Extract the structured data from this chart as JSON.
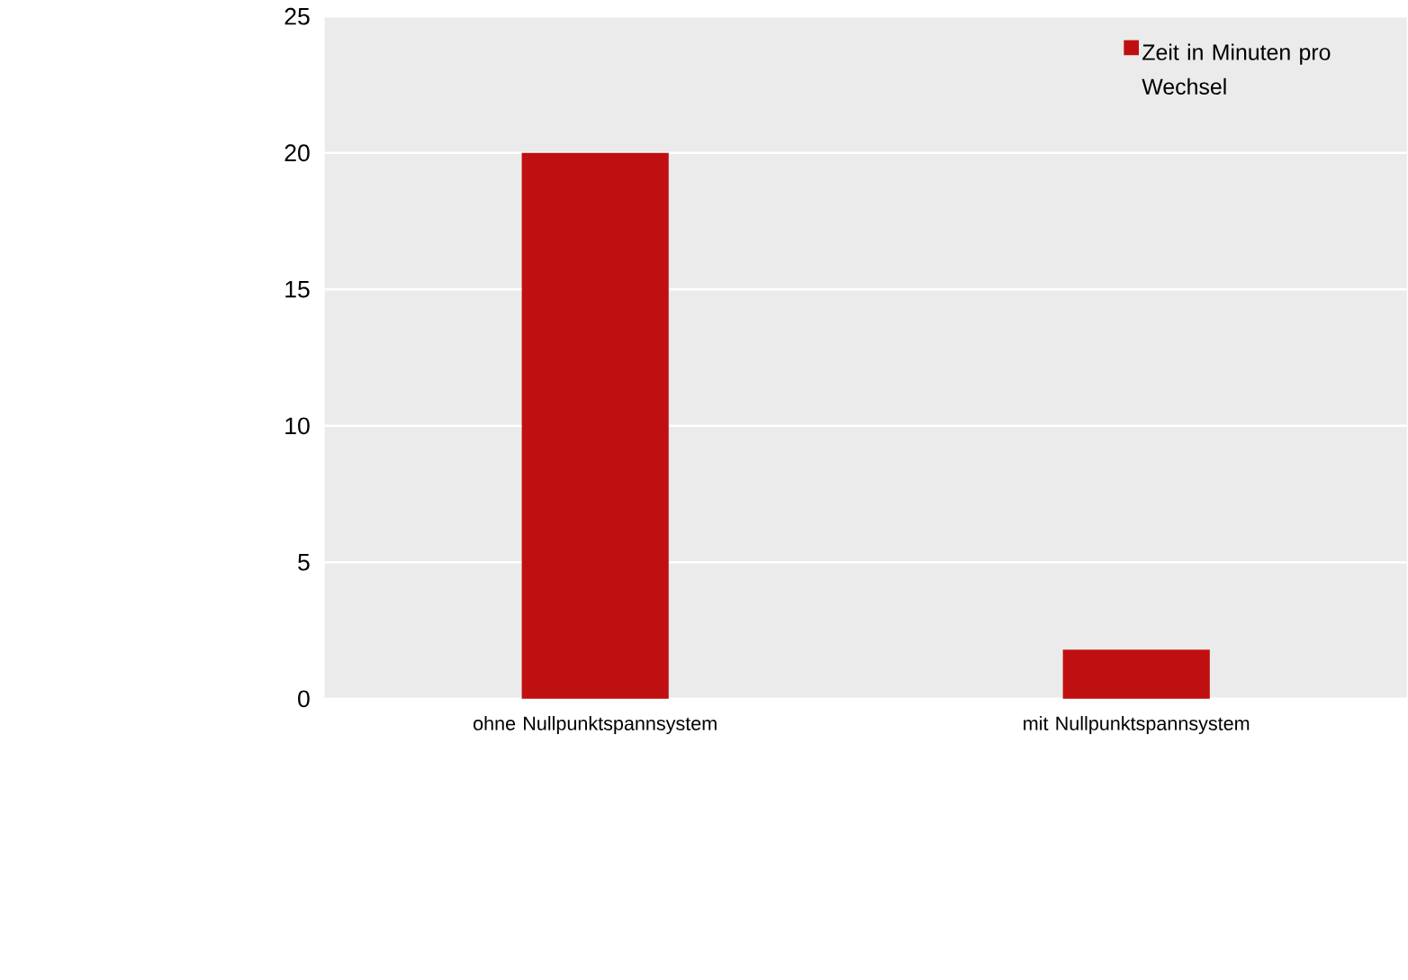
{
  "chart_data": {
    "type": "bar",
    "categories": [
      "ohne Nullpunktspannsystem",
      "mit Nullpunktspannsystem"
    ],
    "series": [
      {
        "name": "Zeit in Minuten pro Wechsel",
        "color": "#c00f10",
        "values": [
          20,
          1.8
        ]
      }
    ],
    "ylim": [
      0,
      25
    ],
    "yticks": [
      0,
      5,
      10,
      15,
      20,
      25
    ],
    "grid": "y",
    "legend": "top right"
  }
}
